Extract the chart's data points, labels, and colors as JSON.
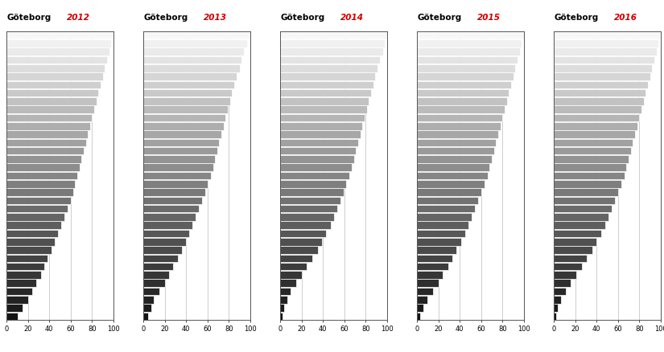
{
  "years": [
    "2012",
    "2013",
    "2014",
    "2015",
    "2016"
  ],
  "title_prefix": "Göteborg",
  "title_color_prefix": "#000000",
  "title_color_year": "#cc0000",
  "xlim": [
    0,
    100
  ],
  "xticks": [
    0,
    20,
    40,
    60,
    80,
    100
  ],
  "background": "#ffffff",
  "bar_data": {
    "2012": [
      100,
      98,
      96,
      94,
      92,
      90,
      88,
      86,
      84,
      82,
      80,
      78,
      76,
      74,
      72,
      70,
      68,
      66,
      64,
      62,
      60,
      57,
      54,
      51,
      48,
      45,
      42,
      38,
      35,
      32,
      28,
      24,
      20,
      15,
      10
    ],
    "2013": [
      100,
      97,
      94,
      92,
      90,
      87,
      85,
      83,
      81,
      79,
      77,
      75,
      73,
      71,
      69,
      67,
      65,
      63,
      60,
      58,
      55,
      52,
      49,
      46,
      43,
      40,
      36,
      32,
      28,
      24,
      20,
      15,
      10,
      7,
      4
    ],
    "2014": [
      100,
      98,
      96,
      93,
      91,
      89,
      87,
      85,
      83,
      81,
      79,
      77,
      75,
      73,
      71,
      69,
      67,
      65,
      62,
      59,
      56,
      53,
      50,
      47,
      43,
      39,
      35,
      30,
      25,
      20,
      15,
      10,
      7,
      4,
      2
    ],
    "2015": [
      100,
      98,
      96,
      94,
      92,
      90,
      88,
      86,
      84,
      82,
      80,
      78,
      76,
      74,
      72,
      70,
      68,
      66,
      63,
      60,
      57,
      54,
      51,
      48,
      45,
      41,
      37,
      33,
      29,
      24,
      20,
      15,
      10,
      6,
      3
    ],
    "2016": [
      100,
      98,
      96,
      94,
      92,
      90,
      88,
      86,
      84,
      82,
      80,
      78,
      76,
      74,
      72,
      70,
      68,
      66,
      63,
      60,
      57,
      54,
      51,
      48,
      44,
      40,
      36,
      31,
      26,
      21,
      16,
      11,
      7,
      4,
      2
    ]
  }
}
